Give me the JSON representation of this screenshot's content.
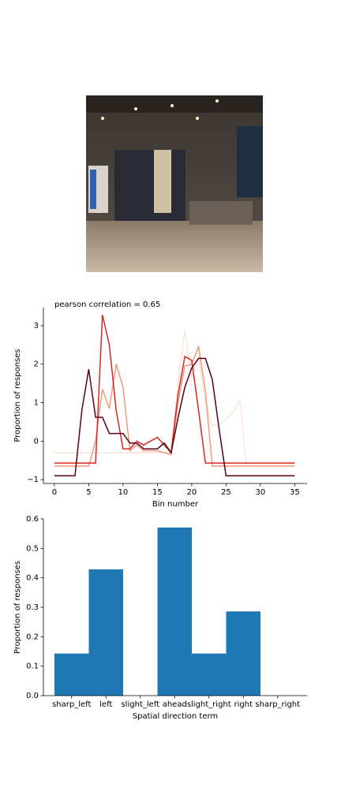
{
  "chart_data": [
    {
      "type": "line",
      "title": "pearson correlation = 0.65",
      "xlabel": "Bin number",
      "ylabel": "Proportion of responses",
      "x": [
        0,
        1,
        2,
        3,
        4,
        5,
        6,
        7,
        8,
        9,
        10,
        11,
        12,
        13,
        14,
        15,
        16,
        17,
        18,
        19,
        20,
        21,
        22,
        23,
        24,
        25,
        26,
        27,
        28,
        29,
        30,
        31,
        32,
        33,
        34,
        35
      ],
      "series": [
        {
          "color": "#fde3da",
          "values": [
            -0.3,
            -0.3,
            -0.3,
            -0.3,
            -0.3,
            -0.3,
            -0.3,
            -0.3,
            -0.3,
            -0.3,
            -0.3,
            -0.3,
            -0.3,
            -0.3,
            -0.3,
            -0.3,
            -0.3,
            -0.3,
            1.5,
            2.9,
            1.6,
            2.2,
            1.0,
            0.4,
            0.45,
            0.55,
            0.75,
            1.05,
            -0.65,
            -0.65,
            -0.65,
            -0.65,
            -0.65,
            -0.65,
            -0.65,
            -0.65
          ]
        },
        {
          "color": "#f4977a",
          "values": [
            -0.65,
            -0.65,
            -0.65,
            -0.65,
            -0.65,
            -0.65,
            0.0,
            1.35,
            0.85,
            2.0,
            1.4,
            -0.25,
            -0.1,
            -0.25,
            -0.25,
            -0.25,
            -0.3,
            -0.35,
            1.0,
            1.95,
            2.0,
            2.45,
            1.3,
            -0.65,
            -0.65,
            -0.65,
            -0.65,
            -0.65,
            -0.65,
            -0.65,
            -0.65,
            -0.65,
            -0.65,
            -0.65,
            -0.65,
            -0.65
          ]
        },
        {
          "color": "#d92823",
          "values": [
            -0.57,
            -0.57,
            -0.57,
            -0.57,
            -0.57,
            -0.57,
            -0.57,
            3.28,
            2.5,
            0.8,
            -0.2,
            -0.2,
            0.0,
            -0.1,
            0.0,
            0.1,
            -0.1,
            -0.3,
            1.2,
            2.2,
            2.1,
            0.8,
            -0.57,
            -0.57,
            -0.57,
            -0.57,
            -0.57,
            -0.57,
            -0.57,
            -0.57,
            -0.57,
            -0.57,
            -0.57,
            -0.57,
            -0.57,
            -0.57
          ]
        },
        {
          "color": "#5c000f",
          "values": [
            -0.9,
            -0.9,
            -0.9,
            -0.9,
            0.8,
            1.87,
            0.62,
            0.62,
            0.2,
            0.2,
            0.2,
            -0.05,
            -0.05,
            -0.2,
            -0.2,
            -0.2,
            -0.05,
            -0.3,
            0.6,
            1.4,
            1.9,
            2.15,
            2.15,
            1.6,
            0.3,
            -0.9,
            -0.9,
            -0.9,
            -0.9,
            -0.9,
            -0.9,
            -0.9,
            -0.9,
            -0.9,
            -0.9,
            -0.9
          ]
        }
      ],
      "xlim": [
        -1.6,
        36.8
      ],
      "xticks": [
        0,
        5,
        10,
        15,
        20,
        25,
        30,
        35
      ],
      "ylim": [
        -1.1,
        3.47
      ],
      "yticks": [
        {
          "value": -1,
          "label": "−1"
        },
        0,
        1,
        2,
        3
      ]
    },
    {
      "type": "bar",
      "xlabel": "Spatial direction term",
      "ylabel": "Proportion of responses",
      "categories": [
        "sharp_left",
        "left",
        "slight_left",
        "ahead",
        "slight_right",
        "right",
        "sharp_right"
      ],
      "values": [
        0.143,
        0.429,
        0,
        0.571,
        0.143,
        0.286,
        0
      ],
      "color": "#1f77b4",
      "ylim": [
        0,
        0.6
      ],
      "yticks": [
        {
          "value": 0,
          "label": "0.0"
        },
        {
          "value": 0.1,
          "label": "0.1"
        },
        {
          "value": 0.2,
          "label": "0.2"
        },
        {
          "value": 0.3,
          "label": "0.3"
        },
        {
          "value": 0.4,
          "label": "0.4"
        },
        {
          "value": 0.5,
          "label": "0.5"
        },
        {
          "value": 0.6,
          "label": "0.6"
        }
      ]
    }
  ]
}
